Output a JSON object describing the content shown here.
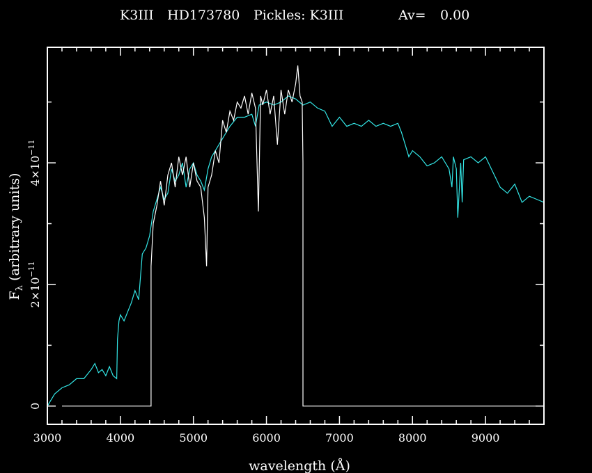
{
  "header": {
    "spectral_type": "K3III",
    "star_id": "HD173780",
    "pickles_label": "Pickles: K3III",
    "av_label": "Av=",
    "av_value": "0.00"
  },
  "colors": {
    "background": "#000000",
    "axes": "#ffffff",
    "observed": "#ffffff",
    "template": "#33e6e6"
  },
  "chart_data": {
    "type": "line",
    "title": "K3III   HD173780   Pickles: K3III   Av=  0.00",
    "xlabel": "wavelength (Å)",
    "ylabel": "F",
    "ylabel_sub": "λ",
    "ylabel_rest": " (arbitrary units)",
    "xlim": [
      3000,
      9800
    ],
    "ylim": [
      -3e-12,
      5.9e-11
    ],
    "x_ticks": [
      {
        "value": 3000,
        "label": "3000"
      },
      {
        "value": 4000,
        "label": "4000"
      },
      {
        "value": 5000,
        "label": "5000"
      },
      {
        "value": 6000,
        "label": "6000"
      },
      {
        "value": 7000,
        "label": "7000"
      },
      {
        "value": 8000,
        "label": "8000"
      },
      {
        "value": 9000,
        "label": "9000"
      }
    ],
    "y_ticks": [
      {
        "value": 0,
        "label": "0",
        "base": "0",
        "exp": ""
      },
      {
        "value": 2e-11,
        "label": "2×10⁻¹¹",
        "base": "2×10",
        "exp": "−11"
      },
      {
        "value": 4e-11,
        "label": "4×10⁻¹¹",
        "base": "4×10",
        "exp": "−11"
      }
    ],
    "grid": false,
    "series": [
      {
        "role": "template",
        "color": "#33e6e6",
        "x": [
          3000,
          3100,
          3200,
          3300,
          3400,
          3500,
          3600,
          3650,
          3700,
          3750,
          3800,
          3850,
          3900,
          3950,
          3960,
          3980,
          4000,
          4050,
          4100,
          4150,
          4200,
          4250,
          4300,
          4350,
          4400,
          4450,
          4500,
          4550,
          4600,
          4650,
          4700,
          4750,
          4800,
          4850,
          4900,
          4950,
          5000,
          5050,
          5100,
          5150,
          5200,
          5250,
          5300,
          5400,
          5500,
          5600,
          5700,
          5800,
          5850,
          5900,
          6000,
          6100,
          6200,
          6300,
          6400,
          6500,
          6600,
          6700,
          6800,
          6900,
          7000,
          7100,
          7200,
          7300,
          7400,
          7500,
          7600,
          7700,
          7800,
          7850,
          7900,
          7950,
          8000,
          8100,
          8200,
          8300,
          8400,
          8500,
          8540,
          8560,
          8600,
          8620,
          8660,
          8680,
          8700,
          8800,
          8900,
          9000,
          9100,
          9200,
          9300,
          9400,
          9500,
          9600,
          9700,
          9800
        ],
        "y": [
          0.0,
          2e-12,
          3e-12,
          3.5e-12,
          4.5e-12,
          4.5e-12,
          6e-12,
          7e-12,
          5.5e-12,
          6e-12,
          5e-12,
          6.5e-12,
          5e-12,
          4.5e-12,
          1.1e-11,
          1.4e-11,
          1.5e-11,
          1.4e-11,
          1.55e-11,
          1.7e-11,
          1.9e-11,
          1.75e-11,
          2.5e-11,
          2.6e-11,
          2.8e-11,
          3.2e-11,
          3.4e-11,
          3.6e-11,
          3.4e-11,
          3.5e-11,
          3.9e-11,
          3.7e-11,
          3.8e-11,
          4e-11,
          3.6e-11,
          3.9e-11,
          4e-11,
          3.8e-11,
          3.7e-11,
          3.55e-11,
          3.9e-11,
          4.1e-11,
          4.2e-11,
          4.4e-11,
          4.6e-11,
          4.75e-11,
          4.75e-11,
          4.8e-11,
          4.6e-11,
          4.95e-11,
          5e-11,
          4.95e-11,
          5e-11,
          5.1e-11,
          5.05e-11,
          4.95e-11,
          5e-11,
          4.9e-11,
          4.85e-11,
          4.6e-11,
          4.75e-11,
          4.6e-11,
          4.65e-11,
          4.6e-11,
          4.7e-11,
          4.6e-11,
          4.65e-11,
          4.6e-11,
          4.65e-11,
          4.5e-11,
          4.3e-11,
          4.1e-11,
          4.2e-11,
          4.1e-11,
          3.95e-11,
          4e-11,
          4.1e-11,
          3.9e-11,
          3.6e-11,
          4.1e-11,
          3.9e-11,
          3.1e-11,
          4e-11,
          3.35e-11,
          4.05e-11,
          4.1e-11,
          4e-11,
          4.1e-11,
          3.85e-11,
          3.6e-11,
          3.5e-11,
          3.65e-11,
          3.35e-11,
          3.45e-11,
          3.4e-11,
          3.35e-11
        ]
      },
      {
        "role": "observed",
        "color": "#ffffff",
        "x": [
          3200,
          4420,
          4420,
          4450,
          4500,
          4550,
          4600,
          4650,
          4700,
          4750,
          4800,
          4850,
          4900,
          4950,
          5000,
          5050,
          5100,
          5150,
          5180,
          5200,
          5250,
          5300,
          5350,
          5400,
          5450,
          5500,
          5550,
          5600,
          5650,
          5700,
          5750,
          5800,
          5850,
          5890,
          5920,
          5950,
          6000,
          6050,
          6100,
          6150,
          6200,
          6250,
          6300,
          6350,
          6400,
          6430,
          6460,
          6490,
          6500,
          6500,
          9800
        ],
        "y": [
          0,
          0,
          2.3e-11,
          3e-11,
          3.3e-11,
          3.7e-11,
          3.3e-11,
          3.8e-11,
          4e-11,
          3.6e-11,
          4.1e-11,
          3.8e-11,
          4.1e-11,
          3.6e-11,
          4e-11,
          3.7e-11,
          3.6e-11,
          3.1e-11,
          2.3e-11,
          3.6e-11,
          3.8e-11,
          4.2e-11,
          4e-11,
          4.7e-11,
          4.5e-11,
          4.85e-11,
          4.7e-11,
          5e-11,
          4.9e-11,
          5.1e-11,
          4.8e-11,
          5.15e-11,
          4.9e-11,
          3.2e-11,
          5.1e-11,
          4.95e-11,
          5.2e-11,
          4.8e-11,
          5.1e-11,
          4.3e-11,
          5.2e-11,
          4.8e-11,
          5.2e-11,
          5e-11,
          5.3e-11,
          5.6e-11,
          5.1e-11,
          5e-11,
          4e-11,
          0,
          0
        ]
      }
    ]
  }
}
